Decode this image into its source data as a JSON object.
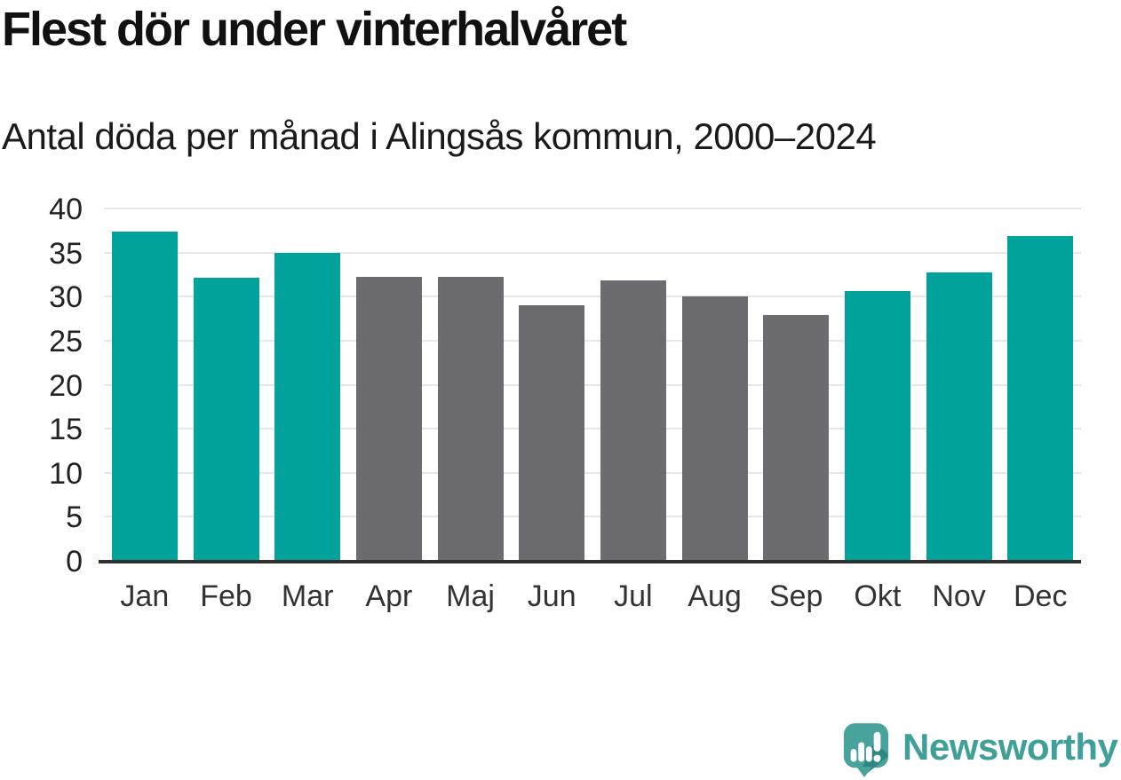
{
  "header": {
    "title": "Flest dör under vinterhalvåret",
    "subtitle": "Antal döda per månad i Alingsås kommun, 2000–2024"
  },
  "chart_data": {
    "type": "bar",
    "title": "Flest dör under vinterhalvåret",
    "subtitle": "Antal döda per månad i Alingsås kommun, 2000–2024",
    "categories": [
      "Jan",
      "Feb",
      "Mar",
      "Apr",
      "Maj",
      "Jun",
      "Jul",
      "Aug",
      "Sep",
      "Okt",
      "Nov",
      "Dec"
    ],
    "values": [
      37.5,
      32.2,
      35.1,
      32.3,
      32.3,
      29.1,
      31.9,
      30.1,
      28.0,
      30.7,
      32.8,
      37.0
    ],
    "highlighted": [
      true,
      true,
      true,
      false,
      false,
      false,
      false,
      false,
      false,
      true,
      true,
      true
    ],
    "xlabel": "",
    "ylabel": "",
    "ylim": [
      0,
      40
    ],
    "yticks": [
      0,
      5,
      10,
      15,
      20,
      25,
      30,
      35,
      40
    ],
    "grid": "horizontal",
    "legend": "none",
    "colors": {
      "highlight": "#00A29B",
      "base": "#6C6B70",
      "gridline": "#e7e7e7",
      "axis": "#303030"
    }
  },
  "footer": {
    "brand": "Newsworthy",
    "logo_icon": "newsworthy-speech-bubble-bar-chart-icon",
    "brand_color": "#3fa099",
    "logo_bubble_color": "#47a39c",
    "logo_shadow_color": "#2e8680"
  }
}
